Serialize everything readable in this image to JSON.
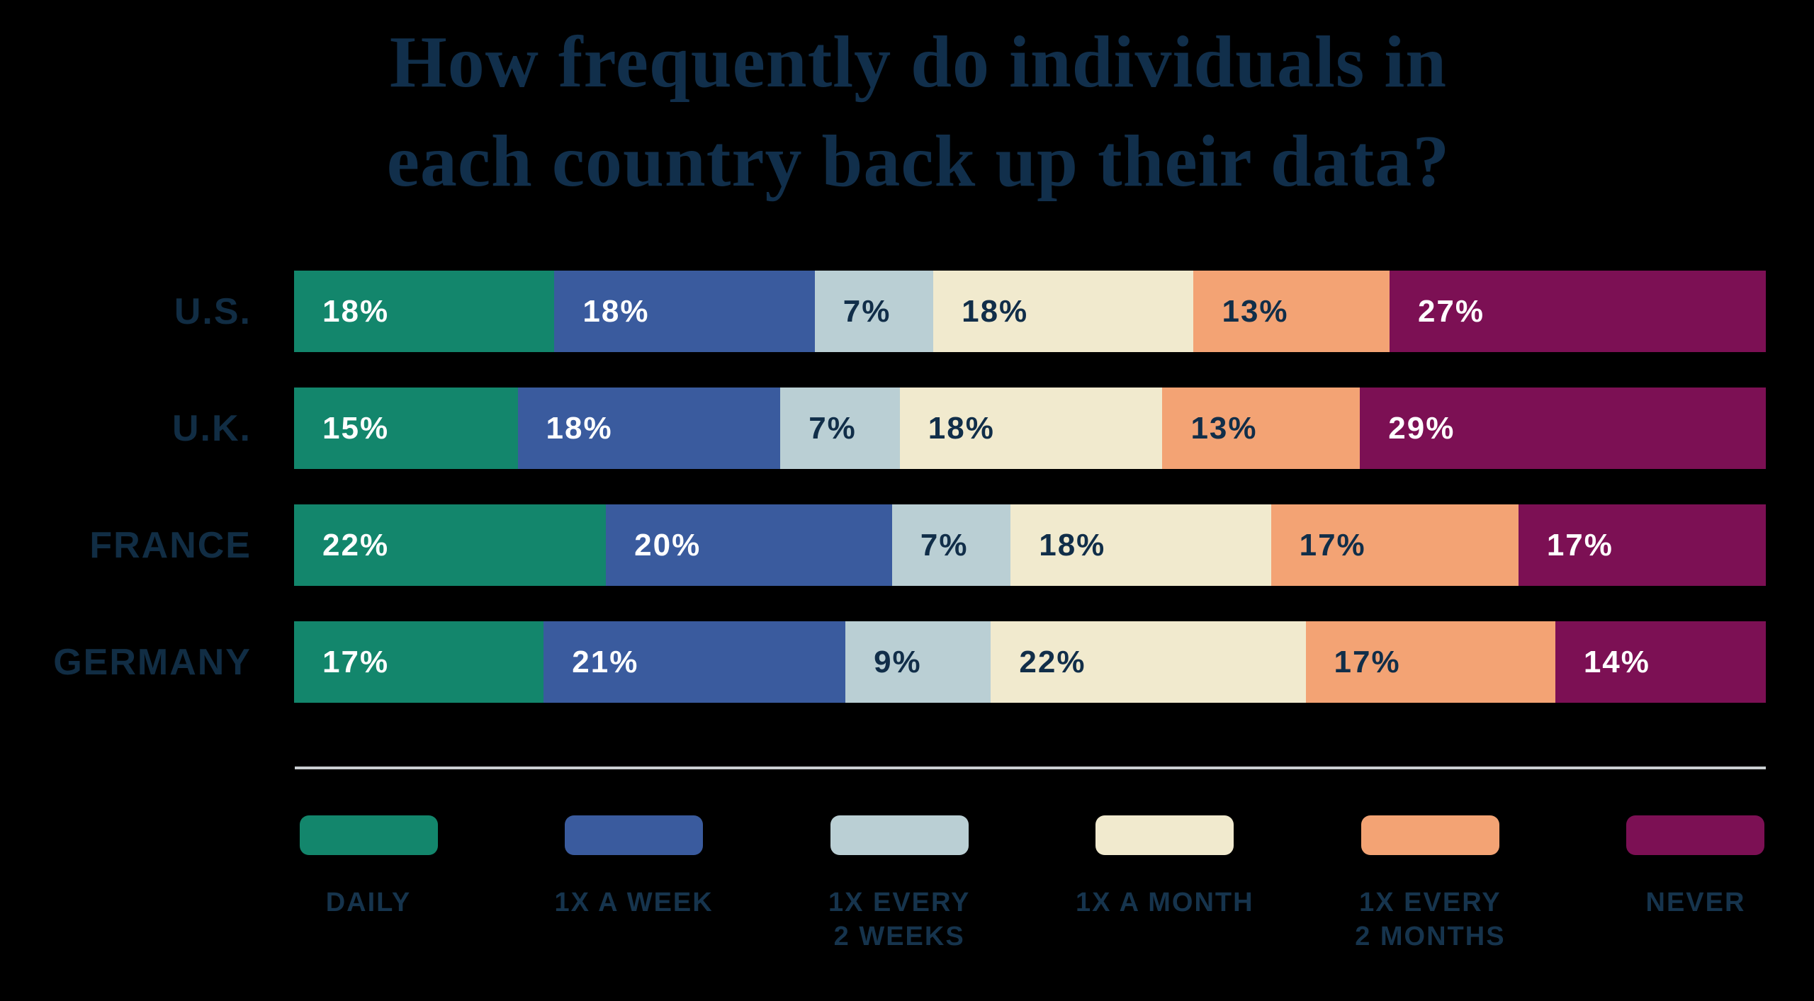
{
  "title": {
    "line1": "How frequently do individuals in",
    "line2": "each country back up their data?"
  },
  "value_suffix": "%",
  "colors": {
    "background": "#000000",
    "title_text": "#112F4B",
    "country_label_text": "#112D44",
    "legend_label_text": "#16344D",
    "divider": "#C9CED1",
    "value_text_light": "#FFFFFF",
    "value_text_dark": "#112E49"
  },
  "legend": [
    {
      "id": "daily",
      "label": "DAILY",
      "color": "#13866C",
      "value_text_color": "#FFFFFF"
    },
    {
      "id": "1x-a-week",
      "label": "1X A WEEK",
      "color": "#3A5B9E",
      "value_text_color": "#FFFFFF"
    },
    {
      "id": "1x-every-2-weeks",
      "label": "1X EVERY\n2 WEEKS",
      "color": "#BACFD4",
      "value_text_color": "#112E49"
    },
    {
      "id": "1x-a-month",
      "label": "1X A MONTH",
      "color": "#F1EACE",
      "value_text_color": "#112E49"
    },
    {
      "id": "1x-every-2-months",
      "label": "1X EVERY\n2 MONTHS",
      "color": "#F3A374",
      "value_text_color": "#112E49"
    },
    {
      "id": "never",
      "label": "NEVER",
      "color": "#7C1054",
      "value_text_color": "#FFFFFF"
    }
  ],
  "rows": [
    {
      "country": "U.S.",
      "values": [
        18,
        18,
        7,
        18,
        13,
        27
      ]
    },
    {
      "country": "U.K.",
      "values": [
        15,
        18,
        7,
        18,
        13,
        29
      ]
    },
    {
      "country": "FRANCE",
      "values": [
        22,
        20,
        7,
        18,
        17,
        17
      ]
    },
    {
      "country": "GERMANY",
      "values": [
        17,
        21,
        9,
        22,
        17,
        14
      ]
    }
  ],
  "chart_data": {
    "type": "bar",
    "subtype": "horizontal-stacked",
    "title": "How frequently do individuals in each country back up their data?",
    "categories": [
      "U.S.",
      "U.K.",
      "FRANCE",
      "GERMANY"
    ],
    "series": [
      {
        "name": "DAILY",
        "values": [
          18,
          15,
          22,
          17
        ]
      },
      {
        "name": "1X A WEEK",
        "values": [
          18,
          18,
          20,
          21
        ]
      },
      {
        "name": "1X EVERY 2 WEEKS",
        "values": [
          7,
          7,
          7,
          9
        ]
      },
      {
        "name": "1X A MONTH",
        "values": [
          18,
          18,
          18,
          22
        ]
      },
      {
        "name": "1X EVERY 2 MONTHS",
        "values": [
          13,
          13,
          17,
          17
        ]
      },
      {
        "name": "NEVER",
        "values": [
          27,
          29,
          17,
          14
        ]
      }
    ],
    "unit": "%",
    "value_labels": "inside-segments",
    "xlabel": "",
    "ylabel": "",
    "axis_ticks": "none",
    "grid": false,
    "legend_position": "bottom"
  }
}
